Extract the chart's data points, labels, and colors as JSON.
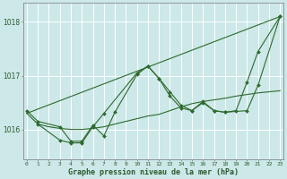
{
  "xlabel_label": "Graphe pression niveau de la mer (hPa)",
  "background_color": "#cce8e8",
  "grid_color": "#ffffff",
  "line_color": "#2d6a2d",
  "marker_color": "#2d6a2d",
  "text_color": "#2d5a2d",
  "ylabel_ticks": [
    1016,
    1017,
    1018
  ],
  "xlim": [
    -0.3,
    23.3
  ],
  "ylim": [
    1015.45,
    1018.35
  ],
  "series": [
    {
      "x": [
        0,
        23
      ],
      "y": [
        1016.3,
        1018.1
      ],
      "has_markers": false
    },
    {
      "x": [
        0,
        1,
        2,
        3,
        4,
        5,
        6,
        7,
        10,
        11,
        12,
        13,
        14,
        15,
        16,
        17,
        18,
        19,
        20,
        21,
        23
      ],
      "y": [
        1016.3,
        1016.1,
        1016.05,
        1016.02,
        1016.0,
        1016.0,
        1016.02,
        1016.05,
        1016.2,
        1016.25,
        1016.28,
        1016.35,
        1016.42,
        1016.48,
        1016.52,
        1016.55,
        1016.58,
        1016.62,
        1016.65,
        1016.68,
        1016.72
      ],
      "has_markers": false
    },
    {
      "x": [
        1,
        3,
        4,
        5,
        6,
        7,
        10,
        11,
        12,
        13,
        14,
        15,
        16,
        17,
        18,
        20,
        21,
        23
      ],
      "y": [
        1016.1,
        1015.8,
        1015.75,
        1015.75,
        1016.05,
        1016.3,
        1017.05,
        1017.18,
        1016.95,
        1016.62,
        1016.4,
        1016.35,
        1016.5,
        1016.35,
        1016.32,
        1016.35,
        1016.82,
        1018.1
      ],
      "has_markers": true
    },
    {
      "x": [
        0,
        1,
        3,
        4,
        5,
        6,
        7,
        8,
        10,
        11,
        12,
        13,
        14,
        15,
        16,
        17,
        18,
        19,
        20,
        21,
        23
      ],
      "y": [
        1016.35,
        1016.15,
        1016.05,
        1015.78,
        1015.78,
        1016.08,
        1015.88,
        1016.32,
        1017.02,
        1017.18,
        1016.95,
        1016.7,
        1016.45,
        1016.35,
        1016.52,
        1016.35,
        1016.32,
        1016.35,
        1016.88,
        1017.45,
        1018.1
      ],
      "has_markers": true
    }
  ]
}
